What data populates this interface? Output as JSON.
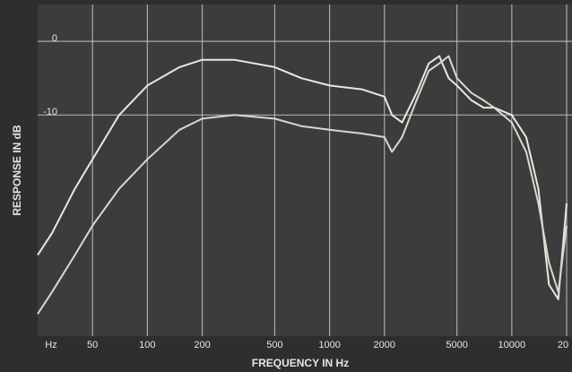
{
  "chart_data": {
    "type": "line",
    "x_label": "FREQUENCY IN Hz",
    "y_label": "RESPONSE IN dB",
    "x_unit_label": "Hz",
    "xscale": "log",
    "grid": true,
    "xlim": [
      25,
      21400
    ],
    "ylim": [
      -40,
      5
    ],
    "xticks": [
      50,
      100,
      200,
      500,
      1000,
      2000,
      5000,
      10000,
      {
        "value": 20000,
        "label": "20"
      }
    ],
    "yticks": [
      0,
      -10
    ],
    "x": [
      25,
      30,
      40,
      50,
      70,
      100,
      150,
      200,
      300,
      500,
      700,
      1000,
      1500,
      2000,
      2200,
      2500,
      3000,
      3500,
      4000,
      4500,
      5000,
      6000,
      7000,
      8000,
      10000,
      12000,
      14000,
      16000,
      18000,
      20000
    ],
    "series": [
      {
        "color": "#e8e8e0",
        "values": [
          -29,
          -26,
          -20,
          -16,
          -10,
          -6,
          -3.5,
          -2.5,
          -2.5,
          -3.5,
          -5,
          -6,
          -6.5,
          -7.5,
          -10,
          -11,
          -7,
          -3,
          -2,
          -5,
          -6,
          -8,
          -9,
          -9,
          -10,
          -13,
          -20,
          -33,
          -35,
          -22
        ]
      },
      {
        "color": "#d8d8cc",
        "values": [
          -37,
          -34,
          -29,
          -25,
          -20,
          -16,
          -12,
          -10.5,
          -10,
          -10.5,
          -11.5,
          -12,
          -12.5,
          -13,
          -15,
          -13,
          -8,
          -4,
          -3,
          -2,
          -5,
          -7,
          -8,
          -9,
          -11,
          -15,
          -22,
          -30,
          -34,
          -25
        ]
      }
    ]
  }
}
